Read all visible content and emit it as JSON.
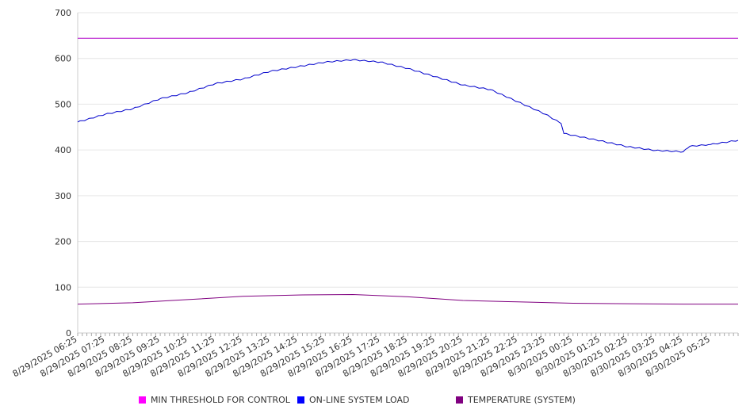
{
  "chart_data": {
    "type": "line",
    "y_ticks": [
      "0",
      "100",
      "200",
      "300",
      "400",
      "500",
      "600",
      "700"
    ],
    "ylim": [
      0,
      700
    ],
    "x_tick_labels": [
      "8/29/2025 06:25",
      "8/29/2025 07:25",
      "8/29/2025 08:25",
      "8/29/2025 09:25",
      "8/29/2025 10:25",
      "8/29/2025 11:25",
      "8/29/2025 12:25",
      "8/29/2025 13:25",
      "8/29/2025 14:25",
      "8/29/2025 15:25",
      "8/29/2025 16:25",
      "8/29/2025 17:25",
      "8/29/2025 18:25",
      "8/29/2025 19:25",
      "8/29/2025 20:25",
      "8/29/2025 21:25",
      "8/29/2025 22:25",
      "8/29/2025 23:25",
      "8/30/2025 00:25",
      "8/30/2025 01:25",
      "8/30/2025 02:25",
      "8/30/2025 03:25",
      "8/30/2025 04:25",
      "8/30/2025 05:25"
    ],
    "x_start": "8/29/2025 06:25",
    "x_end": "8/30/2025 06:25",
    "grid": true,
    "legend_position": "bottom",
    "series": [
      {
        "name": "MIN THRESHOLD FOR CONTROL",
        "color": "#b000c8",
        "points": [
          [
            "8/29/2025 06:25",
            644
          ],
          [
            "8/30/2025 06:25",
            644
          ]
        ]
      },
      {
        "name": "ON-LINE SYSTEM LOAD",
        "color": "#0000cc",
        "points": [
          [
            "8/29/2025 06:25",
            461
          ],
          [
            "8/29/2025 07:25",
            478
          ],
          [
            "8/29/2025 08:25",
            490
          ],
          [
            "8/29/2025 09:25",
            512
          ],
          [
            "8/29/2025 10:25",
            525
          ],
          [
            "8/29/2025 11:25",
            545
          ],
          [
            "8/29/2025 12:25",
            555
          ],
          [
            "8/29/2025 13:25",
            572
          ],
          [
            "8/29/2025 14:25",
            582
          ],
          [
            "8/29/2025 15:25",
            592
          ],
          [
            "8/29/2025 16:25",
            597
          ],
          [
            "8/29/2025 17:25",
            592
          ],
          [
            "8/29/2025 18:25",
            578
          ],
          [
            "8/29/2025 19:25",
            560
          ],
          [
            "8/29/2025 20:25",
            542
          ],
          [
            "8/29/2025 21:25",
            532
          ],
          [
            "8/29/2025 22:25",
            505
          ],
          [
            "8/29/2025 23:25",
            478
          ],
          [
            "8/29/2025 23:59",
            458
          ],
          [
            "8/30/2025 00:05",
            436
          ],
          [
            "8/30/2025 00:25",
            432
          ],
          [
            "8/30/2025 01:25",
            420
          ],
          [
            "8/30/2025 02:25",
            407
          ],
          [
            "8/30/2025 03:25",
            399
          ],
          [
            "8/30/2025 04:25",
            396
          ],
          [
            "8/30/2025 04:40",
            408
          ],
          [
            "8/30/2025 05:25",
            412
          ],
          [
            "8/30/2025 06:25",
            421
          ]
        ]
      },
      {
        "name": "TEMPERATURE (SYSTEM)",
        "color": "#800080",
        "points": [
          [
            "8/29/2025 06:25",
            63
          ],
          [
            "8/29/2025 08:25",
            66
          ],
          [
            "8/29/2025 10:25",
            73
          ],
          [
            "8/29/2025 12:25",
            80
          ],
          [
            "8/29/2025 14:25",
            83
          ],
          [
            "8/29/2025 16:25",
            84
          ],
          [
            "8/29/2025 18:25",
            79
          ],
          [
            "8/29/2025 20:25",
            71
          ],
          [
            "8/29/2025 22:25",
            68
          ],
          [
            "8/30/2025 00:25",
            65
          ],
          [
            "8/30/2025 02:25",
            64
          ],
          [
            "8/30/2025 04:25",
            63
          ],
          [
            "8/30/2025 06:25",
            63
          ]
        ]
      }
    ]
  }
}
